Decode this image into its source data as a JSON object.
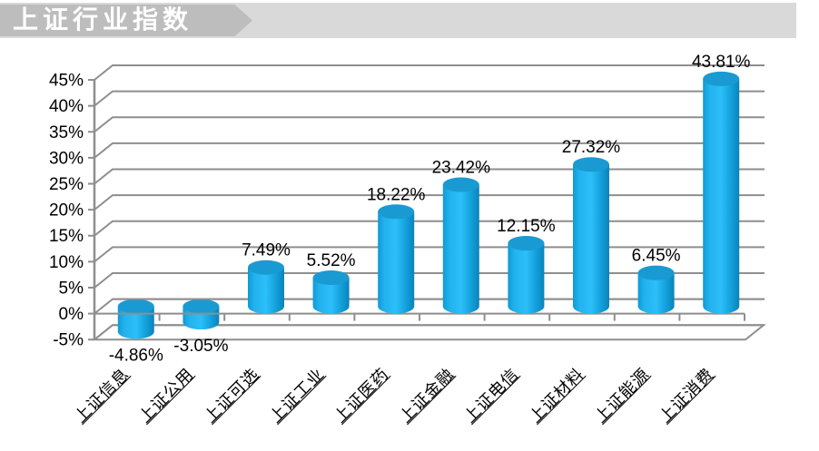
{
  "banner": {
    "title": "上证行业指数",
    "arrow_bg": "#bdbdbd",
    "strip_bg": "#d9d9d9",
    "text_color": "#ffffff"
  },
  "chart_data": {
    "type": "bar",
    "subtype": "3d-cylinder",
    "title": "上证行业指数",
    "xlabel": "",
    "ylabel": "",
    "categories": [
      "上证信息",
      "上证公用",
      "上证可选",
      "上证工业",
      "上证医药",
      "上证金融",
      "上证电信",
      "上证材料",
      "上证能源",
      "上证消费"
    ],
    "values": [
      -4.86,
      -3.05,
      7.49,
      5.52,
      18.22,
      23.42,
      12.15,
      27.32,
      6.45,
      43.81
    ],
    "value_labels": [
      "-4.86%",
      "-3.05%",
      "7.49%",
      "5.52%",
      "18.22%",
      "23.42%",
      "12.15%",
      "27.32%",
      "6.45%",
      "43.81%"
    ],
    "y_tick_labels": [
      "45%",
      "40%",
      "35%",
      "30%",
      "25%",
      "20%",
      "15%",
      "10%",
      "5%",
      "0%",
      "-5%"
    ],
    "y_tick_values": [
      45,
      40,
      35,
      30,
      25,
      20,
      15,
      10,
      5,
      0,
      -5
    ],
    "ylim": [
      -5,
      45
    ],
    "grid": true,
    "legend": null,
    "colors": {
      "bar_body": "#18ACEA",
      "bar_body_light": "#2CBFF9",
      "bar_body_dark": "#0B83B9",
      "bar_top": "#1A9AD2",
      "gridline": "#8e8e8e",
      "label": "#000000"
    }
  }
}
